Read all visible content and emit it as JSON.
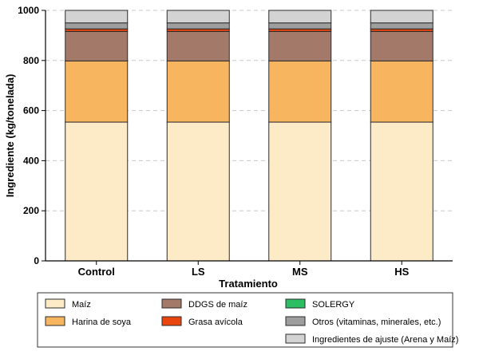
{
  "chart_data": {
    "type": "bar",
    "stacked": true,
    "categories": [
      "Control",
      "LS",
      "MS",
      "HS"
    ],
    "xlabel": "Tratamiento",
    "ylabel": "Ingrediente (kg/tonelada)",
    "ylim": [
      0,
      1000
    ],
    "yticks": [
      0,
      200,
      400,
      600,
      800,
      1000
    ],
    "grid": "horizontal-dashed",
    "legend_position": "bottom",
    "series": [
      {
        "name": "Maíz",
        "color": "#fdebc8",
        "values": [
          554,
          554,
          554,
          554
        ]
      },
      {
        "name": "Harina de soya",
        "color": "#f8b55f",
        "values": [
          244,
          244,
          244,
          244
        ]
      },
      {
        "name": "DDGS de maíz",
        "color": "#a37a6a",
        "values": [
          118,
          118,
          118,
          118
        ]
      },
      {
        "name": "Grasa avícola",
        "color": "#e8460e",
        "values": [
          10,
          10,
          10,
          10
        ]
      },
      {
        "name": "SOLERGY",
        "color": "#2dbd63",
        "values": [
          0,
          0,
          0,
          0
        ]
      },
      {
        "name": "Otros (vitaminas, minerales, etc.)",
        "color": "#9e9e9e",
        "values": [
          24,
          24,
          24,
          24
        ]
      },
      {
        "name": "Ingredientes de ajuste (Arena y Maíz)",
        "color": "#d3d3d3",
        "values": [
          50,
          50,
          50,
          50
        ]
      }
    ]
  }
}
